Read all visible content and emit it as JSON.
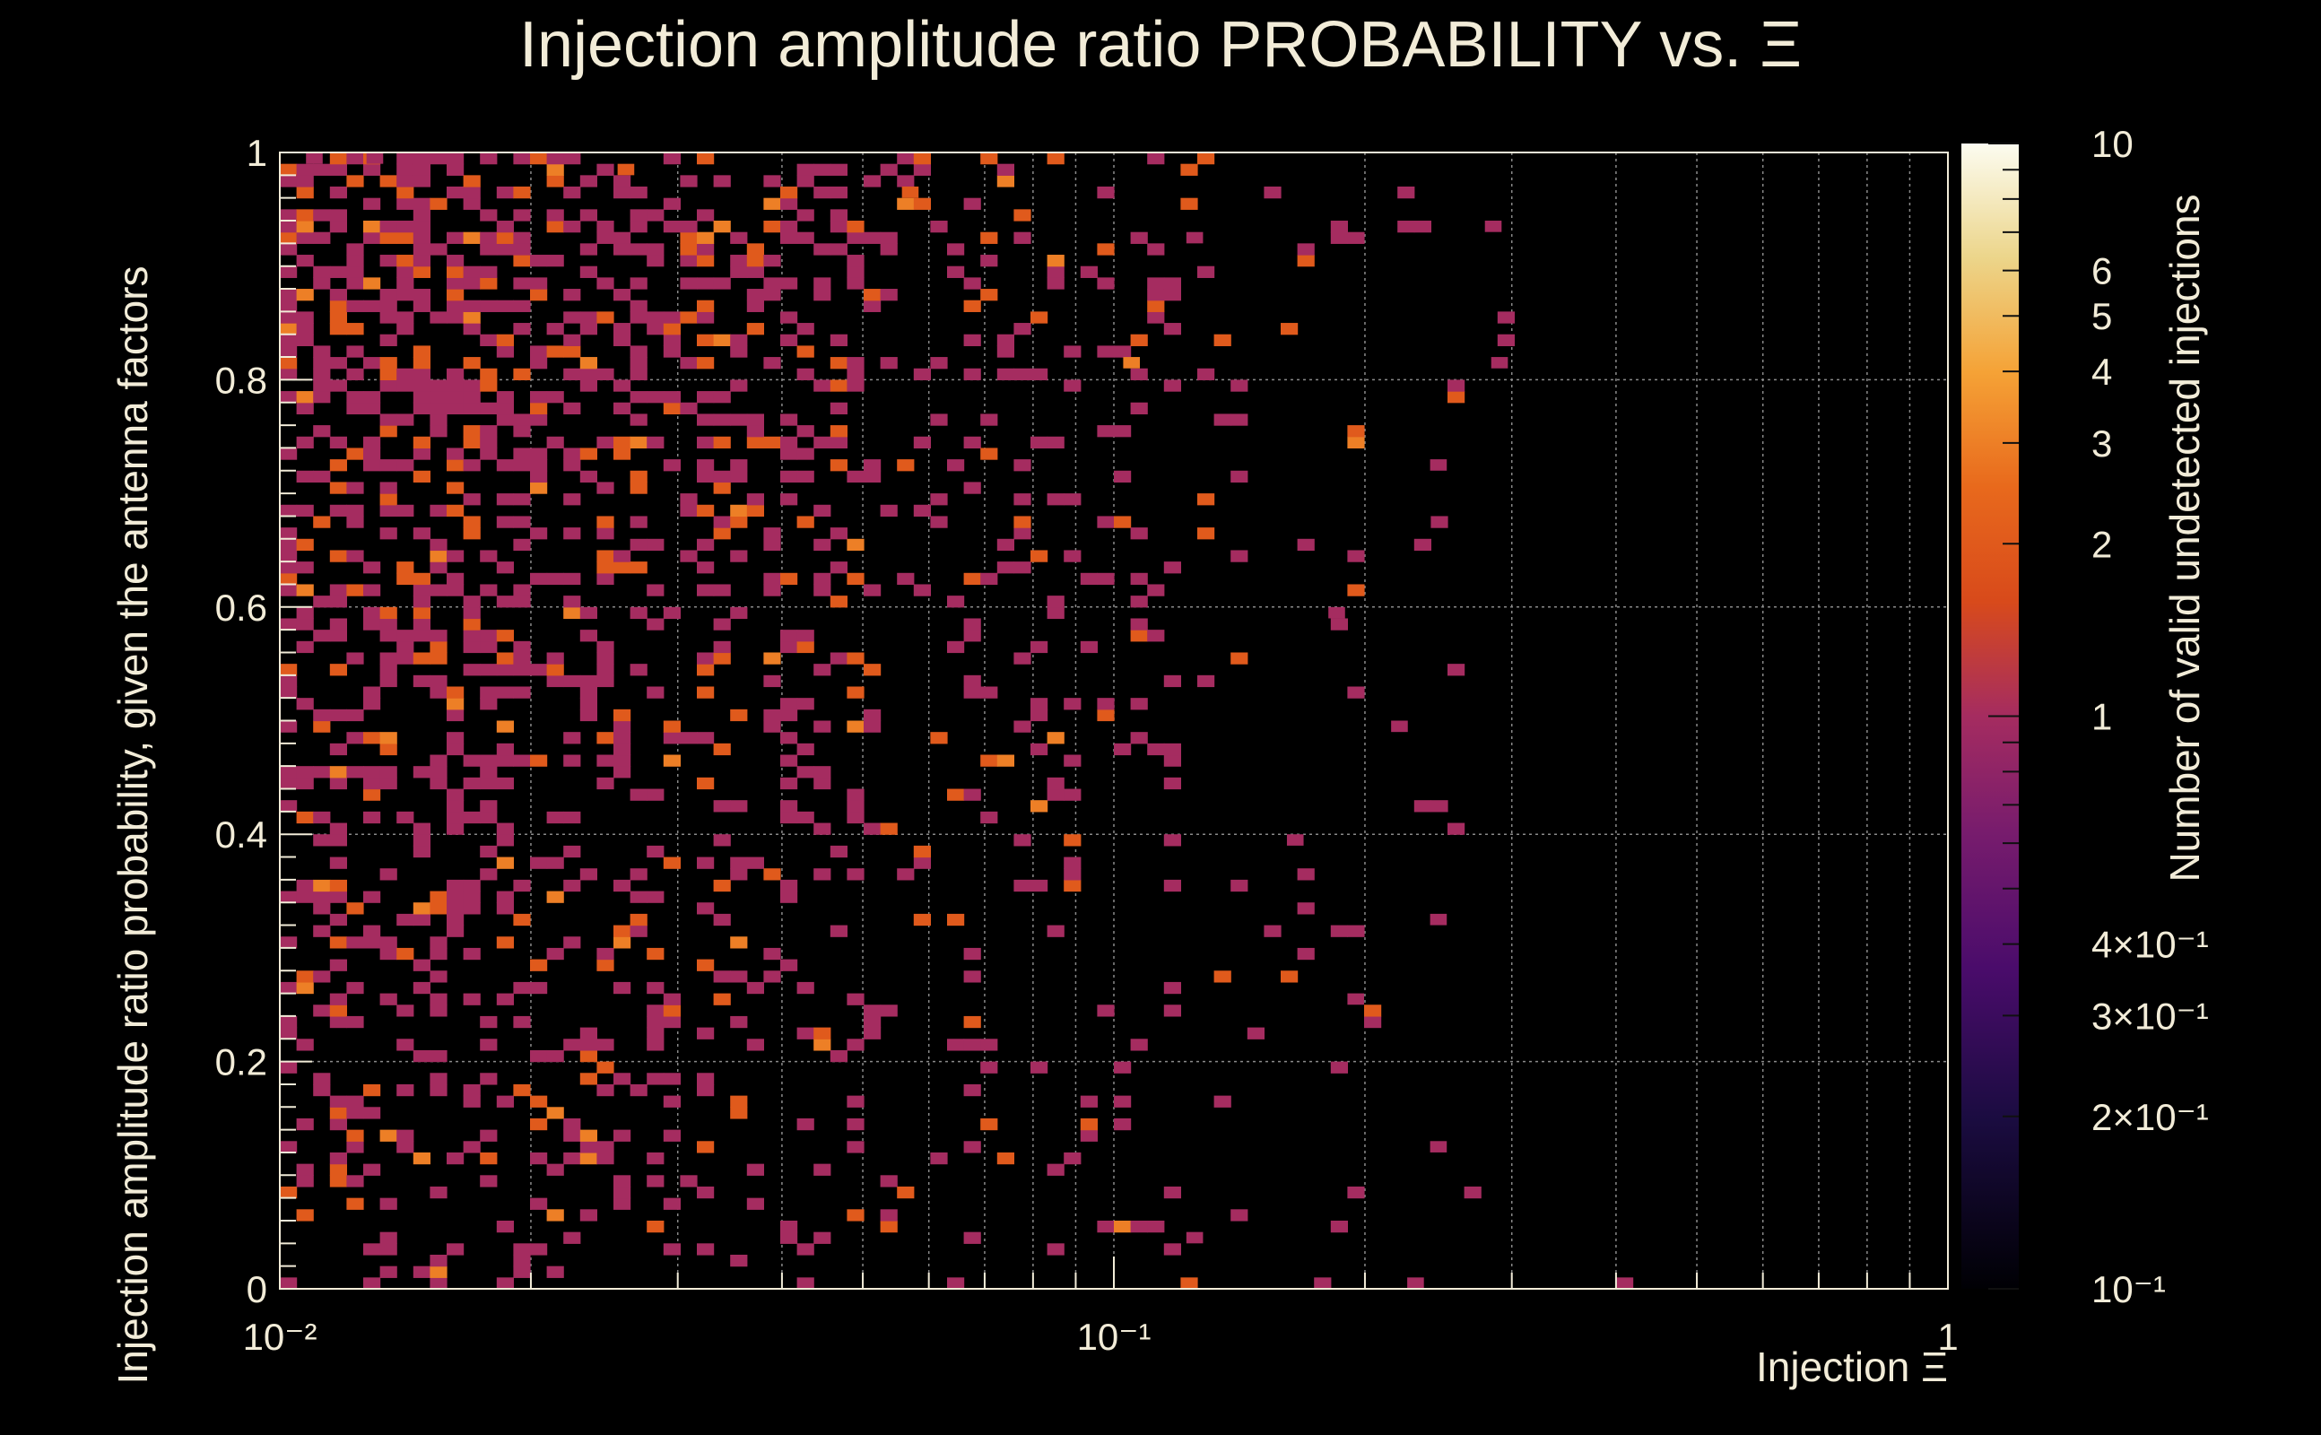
{
  "chart_data": {
    "type": "heatmap",
    "title": "Injection amplitude ratio PROBABILITY vs.  Ξ",
    "xlabel": "Injection Ξ",
    "ylabel": "Injection amplitude ratio probability, given the antenna factors",
    "zlabel": "Number of valid undetected injections",
    "x_scale": "log",
    "xlim": [
      0.01,
      1
    ],
    "ylim": [
      0,
      1
    ],
    "z_scale": "log",
    "zlim": [
      0.1,
      10
    ],
    "x_tick_labels": [
      {
        "value": 0.01,
        "label": "10⁻²"
      },
      {
        "value": 0.1,
        "label": "10⁻¹"
      },
      {
        "value": 1,
        "label": "1"
      }
    ],
    "y_tick_labels": [
      {
        "value": 0,
        "label": "0"
      },
      {
        "value": 0.2,
        "label": "0.2"
      },
      {
        "value": 0.4,
        "label": "0.4"
      },
      {
        "value": 0.6,
        "label": "0.6"
      },
      {
        "value": 0.8,
        "label": "0.8"
      },
      {
        "value": 1,
        "label": "1"
      }
    ],
    "colorbar_tick_labels": [
      {
        "value": 10,
        "label": "10"
      },
      {
        "value": 6,
        "label": "6"
      },
      {
        "value": 5,
        "label": "5"
      },
      {
        "value": 4,
        "label": "4"
      },
      {
        "value": 3,
        "label": "3"
      },
      {
        "value": 2,
        "label": "2"
      },
      {
        "value": 1,
        "label": "1"
      },
      {
        "value": 0.4,
        "label": "4×10⁻¹"
      },
      {
        "value": 0.3,
        "label": "3×10⁻¹"
      },
      {
        "value": 0.2,
        "label": "2×10⁻¹"
      },
      {
        "value": 0.1,
        "label": "10⁻¹"
      }
    ],
    "grid": true,
    "bins": {
      "nx": 100,
      "ny": 100
    },
    "density_profile": {
      "note": "approximate fraction of occupied bins per x-range, estimated from the image",
      "x_edges": [
        0.01,
        0.02,
        0.03,
        0.05,
        0.08,
        0.12,
        0.2,
        0.3,
        1
      ],
      "occupancy": [
        0.55,
        0.42,
        0.32,
        0.24,
        0.14,
        0.06,
        0.02,
        0.0
      ]
    },
    "sample_cells": [
      {
        "x": 0.011,
        "y": 0.995,
        "count": 1
      },
      {
        "x": 0.013,
        "y": 0.995,
        "count": 1
      },
      {
        "x": 0.026,
        "y": 0.985,
        "count": 2
      },
      {
        "x": 0.057,
        "y": 0.965,
        "count": 2
      },
      {
        "x": 0.125,
        "y": 0.925,
        "count": 1
      },
      {
        "x": 0.285,
        "y": 0.935,
        "count": 1
      },
      {
        "x": 0.105,
        "y": 0.815,
        "count": 3
      },
      {
        "x": 0.29,
        "y": 0.815,
        "count": 1
      },
      {
        "x": 0.245,
        "y": 0.725,
        "count": 1
      },
      {
        "x": 0.185,
        "y": 0.595,
        "count": 1
      },
      {
        "x": 0.22,
        "y": 0.495,
        "count": 1
      },
      {
        "x": 0.165,
        "y": 0.395,
        "count": 1
      },
      {
        "x": 0.245,
        "y": 0.325,
        "count": 1
      },
      {
        "x": 0.195,
        "y": 0.255,
        "count": 1
      },
      {
        "x": 0.245,
        "y": 0.125,
        "count": 1
      },
      {
        "x": 0.125,
        "y": 0.045,
        "count": 1
      },
      {
        "x": 0.23,
        "y": 0.005,
        "count": 1
      },
      {
        "x": 0.41,
        "y": 0.005,
        "count": 1
      }
    ]
  }
}
